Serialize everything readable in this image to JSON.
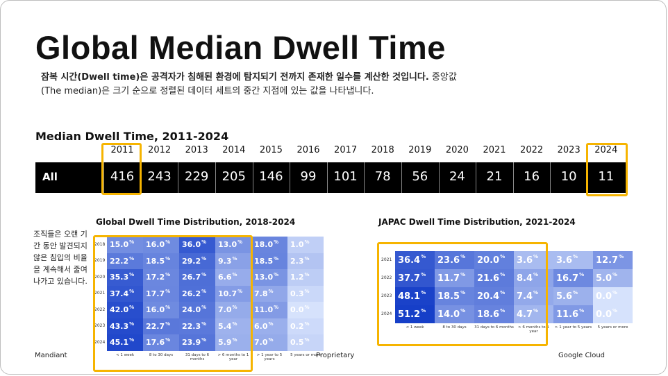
{
  "slide": {
    "title": "Global Median Dwell Time",
    "description_bold": "잠복 시간(Dwell time)은 공격자가 침해된 환경에 탐지되기 전까지 존재한 일수를 계산한 것입니다.",
    "description_rest": " 중앙값(The median)은 크기 순으로 정렬된 데이터 세트의 중간 지점에 있는 값을 나타냅니다.",
    "table_title": "Median Dwell Time, 2011-2024",
    "side_note": "조직들은 오랜 기간 동안 발견되지 않은 침입의 비율을 계속해서 줄여나가고 있습니다.",
    "source_left": "Mandiant",
    "source_mid": "Proprietary",
    "source_right": "Google Cloud",
    "highlight_color": "#f6b400"
  },
  "chart_data": [
    {
      "type": "table",
      "title": "Median Dwell Time, 2011-2024",
      "row_label": "All",
      "categories": [
        "2011",
        "2012",
        "2013",
        "2014",
        "2015",
        "2016",
        "2017",
        "2018",
        "2019",
        "2020",
        "2021",
        "2022",
        "2023",
        "2024"
      ],
      "values": [
        416,
        243,
        229,
        205,
        146,
        99,
        101,
        78,
        56,
        24,
        21,
        16,
        10,
        11
      ],
      "highlighted": [
        "2011",
        "2024"
      ]
    },
    {
      "type": "heatmap",
      "title": "Global Dwell Time Distribution, 2018-2024",
      "rows": [
        "2018",
        "2019",
        "2020",
        "2021",
        "2022",
        "2023",
        "2024"
      ],
      "columns": [
        "< 1 week",
        "8 to 30 days",
        "31 days to 6 months",
        "> 6 months to 1 year",
        "> 1 year to 5 years",
        "5 years or more"
      ],
      "values": [
        [
          15.0,
          16.0,
          36.0,
          13.0,
          18.0,
          1.0
        ],
        [
          22.2,
          18.5,
          29.2,
          9.3,
          18.5,
          2.3
        ],
        [
          35.3,
          17.2,
          26.7,
          6.6,
          13.0,
          1.2
        ],
        [
          37.4,
          17.7,
          26.2,
          10.7,
          7.8,
          0.3
        ],
        [
          42.0,
          16.0,
          24.0,
          7.0,
          11.0,
          0.0
        ],
        [
          43.3,
          22.7,
          22.3,
          5.4,
          6.0,
          0.2
        ],
        [
          45.1,
          17.6,
          23.9,
          5.9,
          7.0,
          0.5
        ]
      ],
      "unit": "%"
    },
    {
      "type": "heatmap",
      "title": "JAPAC Dwell Time Distribution, 2021-2024",
      "rows": [
        "2021",
        "2022",
        "2023",
        "2024"
      ],
      "columns": [
        "< 1 week",
        "8 to 30 days",
        "31 days to 6 months",
        "> 6 months to 1 year",
        "> 1 year to 5 years",
        "5 years or more"
      ],
      "values": [
        [
          36.4,
          23.6,
          20.0,
          3.6,
          3.6,
          12.7
        ],
        [
          37.7,
          11.7,
          21.6,
          8.4,
          16.7,
          5.0
        ],
        [
          48.1,
          18.5,
          20.4,
          7.4,
          5.6,
          0.0
        ],
        [
          51.2,
          14.0,
          18.6,
          4.7,
          11.6,
          0.0
        ]
      ],
      "unit": "%"
    }
  ]
}
